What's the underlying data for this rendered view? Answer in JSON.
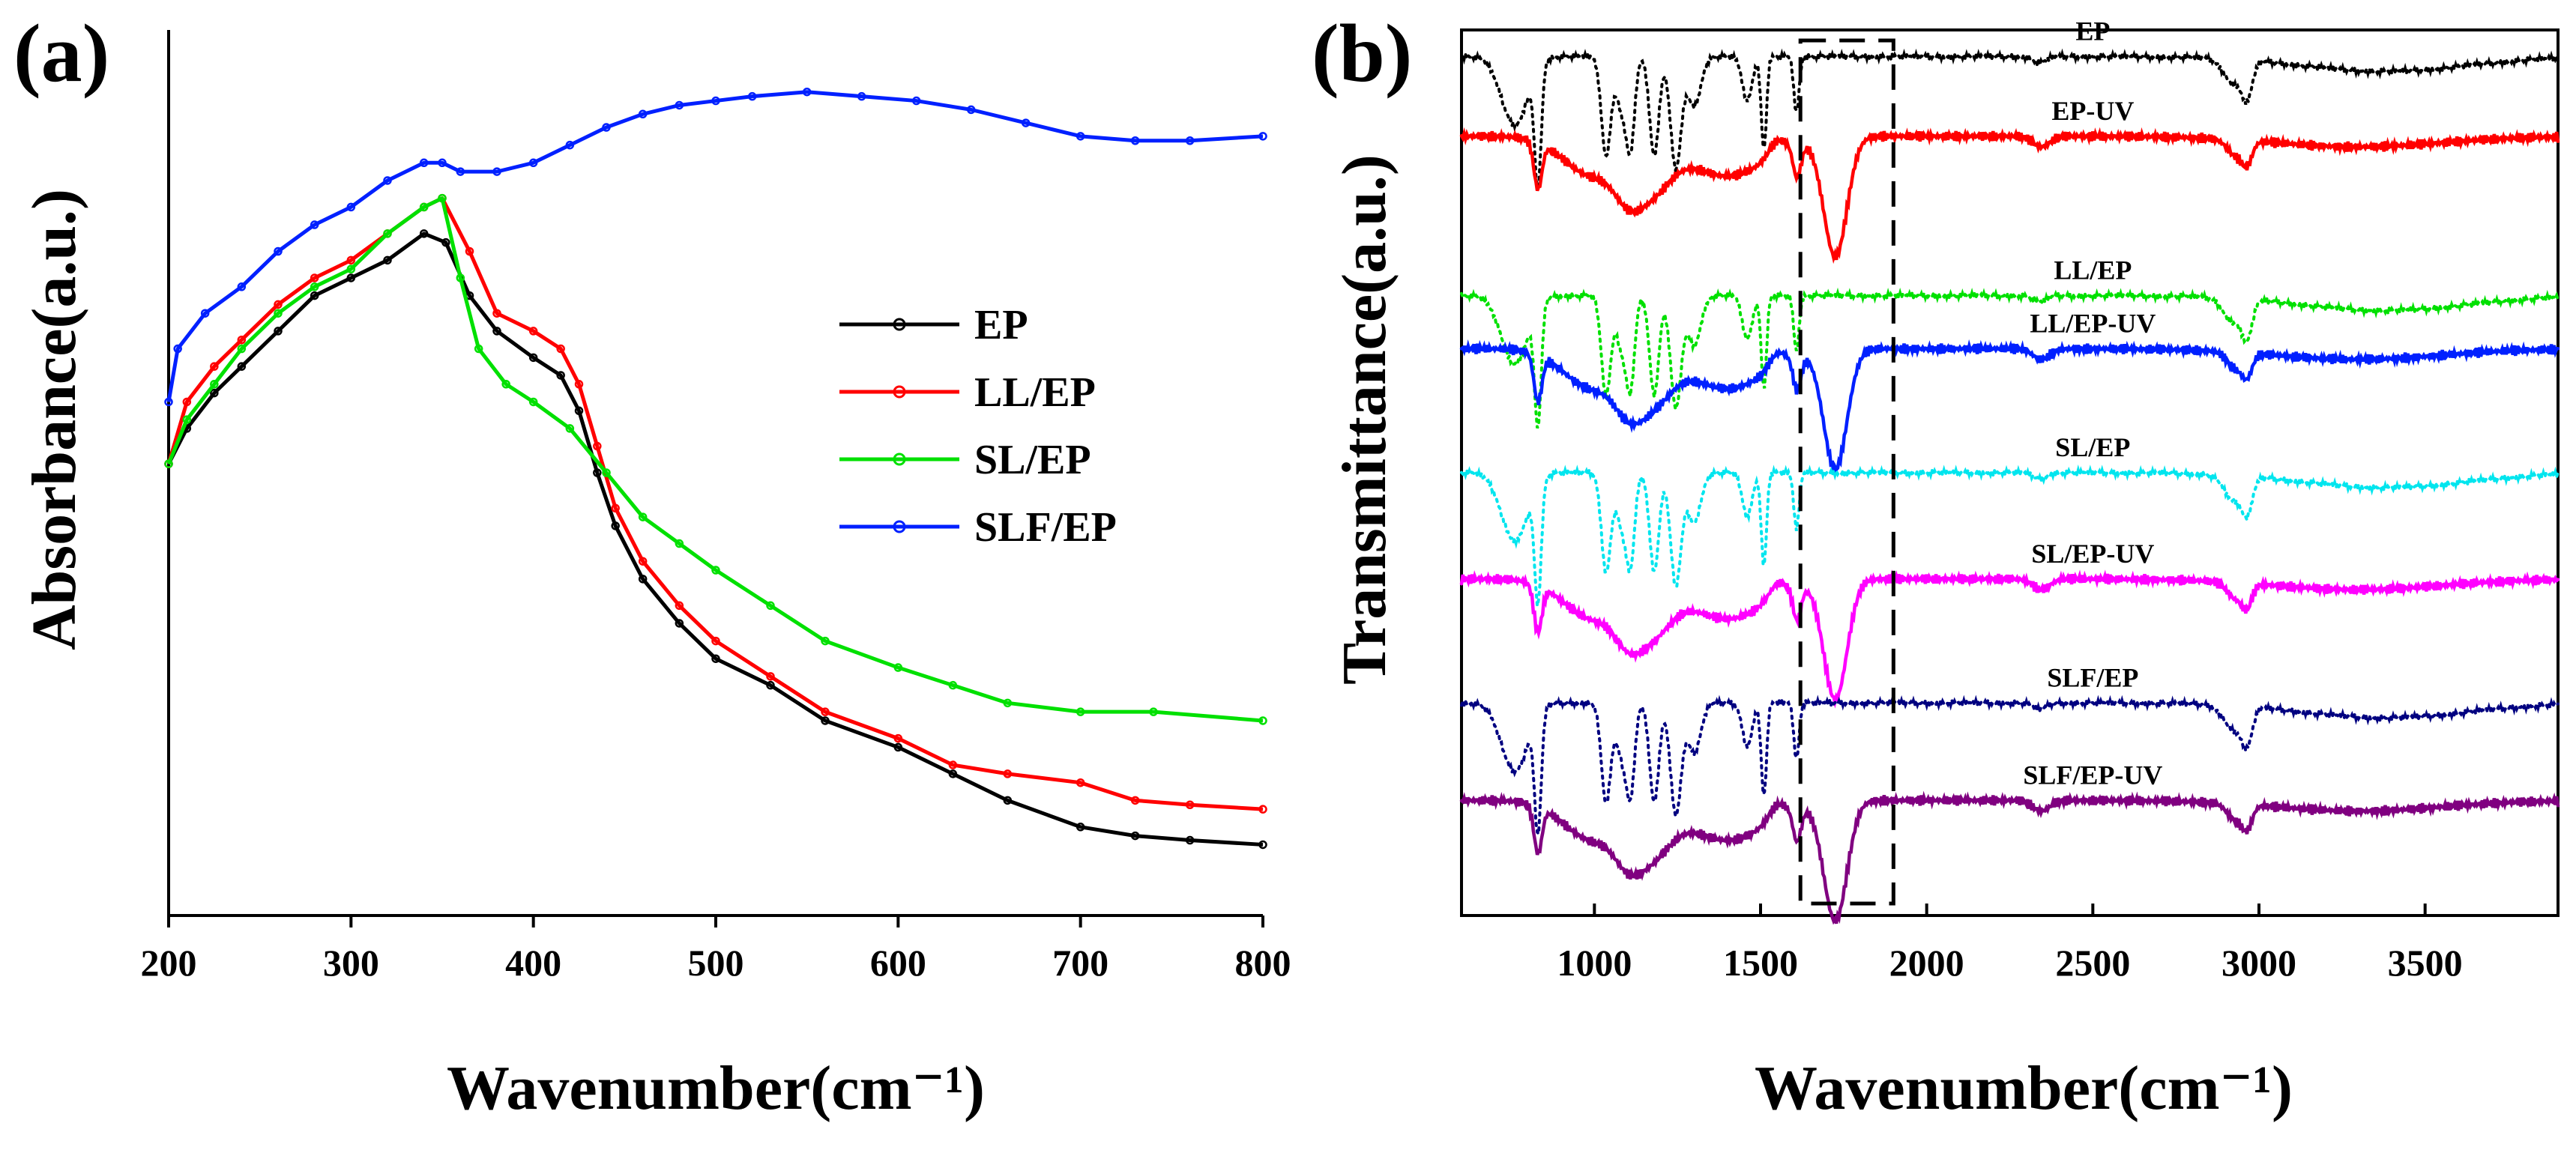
{
  "chart_data": [
    {
      "type": "line",
      "panel_label": "(a)",
      "xlabel": "Wavenumber(cm⁻¹)",
      "ylabel": "Absorbance(a.u.)",
      "xlim": [
        200,
        800
      ],
      "ylim": [
        0,
        1
      ],
      "xticks": [
        200,
        300,
        400,
        500,
        600,
        700,
        800
      ],
      "xtick_labels": [
        "200",
        "300",
        "400",
        "500",
        "600",
        "700",
        "800"
      ],
      "legend_position": "center-right",
      "series": [
        {
          "name": "EP",
          "color": "#000000",
          "x": [
            200,
            210,
            225,
            240,
            260,
            280,
            300,
            320,
            340,
            352,
            365,
            380,
            400,
            415,
            425,
            435,
            445,
            460,
            480,
            500,
            530,
            560,
            600,
            630,
            660,
            700,
            730,
            760,
            800
          ],
          "y": [
            0.51,
            0.55,
            0.59,
            0.62,
            0.66,
            0.7,
            0.72,
            0.74,
            0.77,
            0.76,
            0.7,
            0.66,
            0.63,
            0.61,
            0.57,
            0.5,
            0.44,
            0.38,
            0.33,
            0.29,
            0.26,
            0.22,
            0.19,
            0.16,
            0.13,
            0.1,
            0.09,
            0.085,
            0.08
          ]
        },
        {
          "name": "LL/EP",
          "color": "#ff0000",
          "x": [
            200,
            210,
            225,
            240,
            260,
            280,
            300,
            320,
            340,
            350,
            365,
            380,
            400,
            415,
            425,
            435,
            445,
            460,
            480,
            500,
            530,
            560,
            600,
            630,
            660,
            700,
            730,
            760,
            800
          ],
          "y": [
            0.51,
            0.58,
            0.62,
            0.65,
            0.69,
            0.72,
            0.74,
            0.77,
            0.8,
            0.81,
            0.75,
            0.68,
            0.66,
            0.64,
            0.6,
            0.53,
            0.46,
            0.4,
            0.35,
            0.31,
            0.27,
            0.23,
            0.2,
            0.17,
            0.16,
            0.15,
            0.13,
            0.125,
            0.12
          ]
        },
        {
          "name": "SL/EP",
          "color": "#00e000",
          "x": [
            200,
            210,
            225,
            240,
            260,
            280,
            300,
            320,
            340,
            350,
            360,
            370,
            385,
            400,
            420,
            440,
            460,
            480,
            500,
            530,
            560,
            600,
            630,
            660,
            700,
            740,
            800
          ],
          "y": [
            0.51,
            0.56,
            0.6,
            0.64,
            0.68,
            0.71,
            0.73,
            0.77,
            0.8,
            0.81,
            0.72,
            0.64,
            0.6,
            0.58,
            0.55,
            0.5,
            0.45,
            0.42,
            0.39,
            0.35,
            0.31,
            0.28,
            0.26,
            0.24,
            0.23,
            0.23,
            0.22
          ]
        },
        {
          "name": "SLF/EP",
          "color": "#0020ff",
          "x": [
            200,
            205,
            220,
            240,
            260,
            280,
            300,
            320,
            340,
            350,
            360,
            380,
            400,
            420,
            440,
            460,
            480,
            500,
            520,
            550,
            580,
            610,
            640,
            670,
            700,
            730,
            760,
            800
          ],
          "y": [
            0.58,
            0.64,
            0.68,
            0.71,
            0.75,
            0.78,
            0.8,
            0.83,
            0.85,
            0.85,
            0.84,
            0.84,
            0.85,
            0.87,
            0.89,
            0.905,
            0.915,
            0.92,
            0.925,
            0.93,
            0.925,
            0.92,
            0.91,
            0.895,
            0.88,
            0.875,
            0.875,
            0.88
          ]
        }
      ]
    },
    {
      "type": "line",
      "panel_label": "(b)",
      "xlabel": "Wavenumber(cm⁻¹)",
      "ylabel": "Transmittance(a.u.)",
      "xlim": [
        600,
        3900
      ],
      "ylim": [
        0,
        10
      ],
      "xticks": [
        1000,
        1500,
        2000,
        2500,
        3000,
        3500
      ],
      "xtick_labels": [
        "1000",
        "1500",
        "2000",
        "2500",
        "3000",
        "3500"
      ],
      "highlight_region": [
        1620,
        1900
      ],
      "baselines": [
        9.7,
        8.8,
        7.0,
        6.4,
        5.0,
        3.8,
        2.4,
        1.3
      ],
      "series": [
        {
          "name": "EP",
          "label": "EP",
          "color": "#000000",
          "style": "dotted",
          "offset": 9.7
        },
        {
          "name": "EP-UV",
          "label": "EP-UV",
          "color": "#ff0000",
          "style": "solid",
          "offset": 8.8
        },
        {
          "name": "LL/EP",
          "label": "LL/EP",
          "color": "#00e000",
          "style": "dotted",
          "offset": 7.0
        },
        {
          "name": "LL/EP-UV",
          "label": "LL/EP-UV",
          "color": "#0020ff",
          "style": "solid",
          "offset": 6.4
        },
        {
          "name": "SL/EP",
          "label": "SL/EP",
          "color": "#00e5ee",
          "style": "dotted",
          "offset": 5.0
        },
        {
          "name": "SL/EP-UV",
          "label": "SL/EP-UV",
          "color": "#ff00ff",
          "style": "solid",
          "offset": 3.8
        },
        {
          "name": "SLF/EP",
          "label": "SLF/EP",
          "color": "#000080",
          "style": "dotted",
          "offset": 2.4
        },
        {
          "name": "SLF/EP-UV",
          "label": "SLF/EP-UV",
          "color": "#800080",
          "style": "solid",
          "offset": 1.3
        }
      ]
    }
  ]
}
